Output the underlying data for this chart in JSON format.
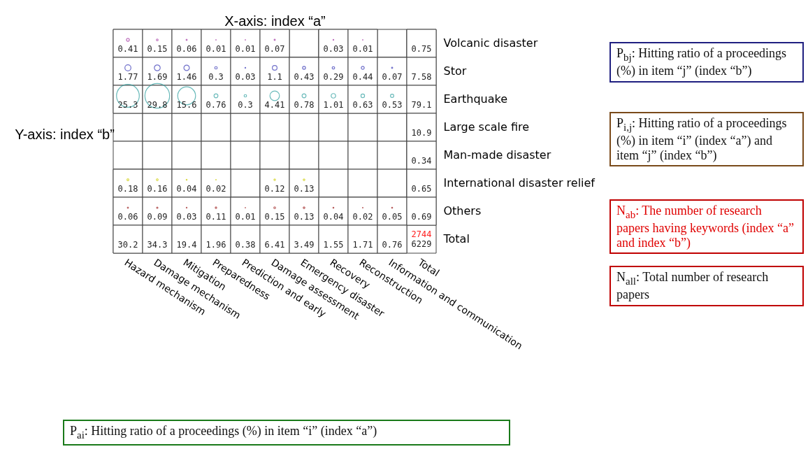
{
  "chart_data": {
    "type": "heatmap",
    "xlabel": "X-axis: index “a”",
    "ylabel": "Y-axis: index “b”",
    "categories": [
      "Hazard mechanism",
      "Damage mechanism",
      "Mitigation",
      "Preparedness",
      "Prediction and early",
      "Damage assessment",
      "Emergency disaster",
      "Recovery",
      "Reconstruction",
      "Information and communication",
      "Total"
    ],
    "y_categories": [
      "Volcanic disaster",
      "Stor",
      "Earthquake",
      "Large scale fire",
      "Man-made disaster",
      "International disaster relief",
      "Others",
      "Total"
    ],
    "cells": [
      [
        0.41,
        0.15,
        0.06,
        0.01,
        0.01,
        0.07,
        null,
        0.03,
        0.01,
        null,
        0.75
      ],
      [
        1.77,
        1.69,
        1.46,
        0.3,
        0.03,
        1.1,
        0.43,
        0.29,
        0.44,
        0.07,
        7.58
      ],
      [
        25.3,
        29.8,
        15.6,
        0.76,
        0.3,
        4.41,
        0.78,
        1.01,
        0.63,
        0.53,
        79.1
      ],
      [
        null,
        null,
        null,
        null,
        null,
        null,
        null,
        null,
        null,
        null,
        10.9
      ],
      [
        null,
        null,
        null,
        null,
        null,
        null,
        null,
        null,
        null,
        null,
        0.34
      ],
      [
        0.18,
        0.16,
        0.04,
        0.02,
        null,
        0.12,
        0.13,
        null,
        null,
        null,
        0.65
      ],
      [
        0.06,
        0.09,
        0.03,
        0.11,
        0.01,
        0.15,
        0.13,
        0.04,
        0.02,
        0.05,
        0.69
      ],
      [
        30.2,
        34.3,
        19.4,
        1.96,
        0.38,
        6.41,
        3.49,
        1.55,
        1.71,
        0.76,
        null
      ]
    ],
    "colors": [
      [
        "#a0309f",
        "#a0309f",
        "#a0309f",
        "#a0309f",
        "#a0309f",
        "#a0309f",
        null,
        "#a0309f",
        "#a0309f",
        null,
        null
      ],
      [
        "#3535b5",
        "#3535b5",
        "#3535b5",
        "#3535b5",
        "#3535b5",
        "#3535b5",
        "#3535b5",
        "#3535b5",
        "#3535b5",
        "#3535b5",
        null
      ],
      [
        "#2a9d9d",
        "#2a9d9d",
        "#2a9d9d",
        "#2a9d9d",
        "#2a9d9d",
        "#2a9d9d",
        "#2a9d9d",
        "#2a9d9d",
        "#2a9d9d",
        "#2a9d9d",
        null
      ],
      [
        null,
        null,
        null,
        null,
        null,
        null,
        null,
        null,
        null,
        null,
        null
      ],
      [
        null,
        null,
        null,
        null,
        null,
        null,
        null,
        null,
        null,
        null,
        null
      ],
      [
        "#cccc00",
        "#cccc00",
        "#cccc00",
        "#cccc00",
        null,
        "#cccc00",
        "#cccc00",
        null,
        null,
        null,
        null
      ],
      [
        "#9b1c1c",
        "#9b1c1c",
        "#9b1c1c",
        "#9b1c1c",
        "#9b1c1c",
        "#9b1c1c",
        "#9b1c1c",
        "#9b1c1c",
        "#9b1c1c",
        "#9b1c1c",
        null
      ],
      [
        null,
        null,
        null,
        null,
        null,
        null,
        null,
        null,
        null,
        null,
        null
      ]
    ],
    "data_labels": true,
    "annotations": [
      "2744",
      "6229",
      "P$_{bj}$: Hitting ratio of a proceedings (%) in item “j” (index “b”)",
      "P$_{i,j}$: Hitting ratio of a proceedings (%) in item “i” (index “a”) and item “j” (index “b”)",
      "N$_{ab}$: The number of research papers having keywords (index “a” and index “b”)",
      "N$_{all}$: Total number of research papers",
      "P$_{ai}$: Hitting ratio of a proceedings (%) in item “i” (index “a”)"
    ]
  }
}
